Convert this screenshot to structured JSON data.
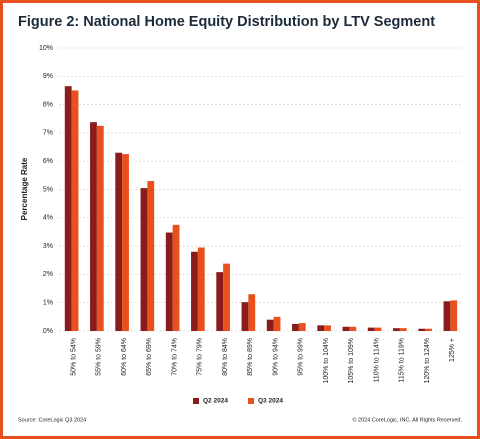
{
  "chart_data": {
    "type": "bar",
    "title": "Figure 2: National Home Equity Distribution by LTV Segment",
    "ylabel": "Percentage Rate",
    "categories": [
      "50% to 54%",
      "55% to 59%",
      "60% to 64%",
      "65% to 69%",
      "70% to 74%",
      "75% to 79%",
      "80% to 84%",
      "85% to 89%",
      "90% to 94%",
      "95% to 99%",
      "100% to 104%",
      "105% to 109%",
      "110% to 114%",
      "115% to 119%",
      "120% to 124%",
      "125% +"
    ],
    "series": [
      {
        "name": "Q2 2024",
        "color": "#8b1c1c",
        "values": [
          8.65,
          7.38,
          6.3,
          5.05,
          3.48,
          2.8,
          2.08,
          1.02,
          0.4,
          0.25,
          0.2,
          0.15,
          0.12,
          0.1,
          0.08,
          1.05
        ]
      },
      {
        "name": "Q3 2024",
        "color": "#e8501e",
        "values": [
          8.5,
          7.25,
          6.25,
          5.3,
          3.75,
          2.95,
          2.38,
          1.3,
          0.5,
          0.28,
          0.2,
          0.15,
          0.12,
          0.1,
          0.08,
          1.08
        ]
      }
    ],
    "ylim": [
      0,
      10
    ],
    "yticks": [
      {
        "value": 0,
        "label": "0%"
      },
      {
        "value": 1,
        "label": "1%"
      },
      {
        "value": 2,
        "label": "2%"
      },
      {
        "value": 3,
        "label": "3%"
      },
      {
        "value": 4,
        "label": "4%"
      },
      {
        "value": 5,
        "label": "5%"
      },
      {
        "value": 6,
        "label": "6%"
      },
      {
        "value": 7,
        "label": "7%"
      },
      {
        "value": 8,
        "label": "8%"
      },
      {
        "value": 9,
        "label": "9%"
      },
      {
        "value": 10,
        "label": "10%"
      }
    ],
    "grid": true,
    "legend": "bottom",
    "source": "Source: CoreLogic Q3 2024",
    "copyright": "© 2024 CoreLogic, INC. All Rights Reserved."
  }
}
